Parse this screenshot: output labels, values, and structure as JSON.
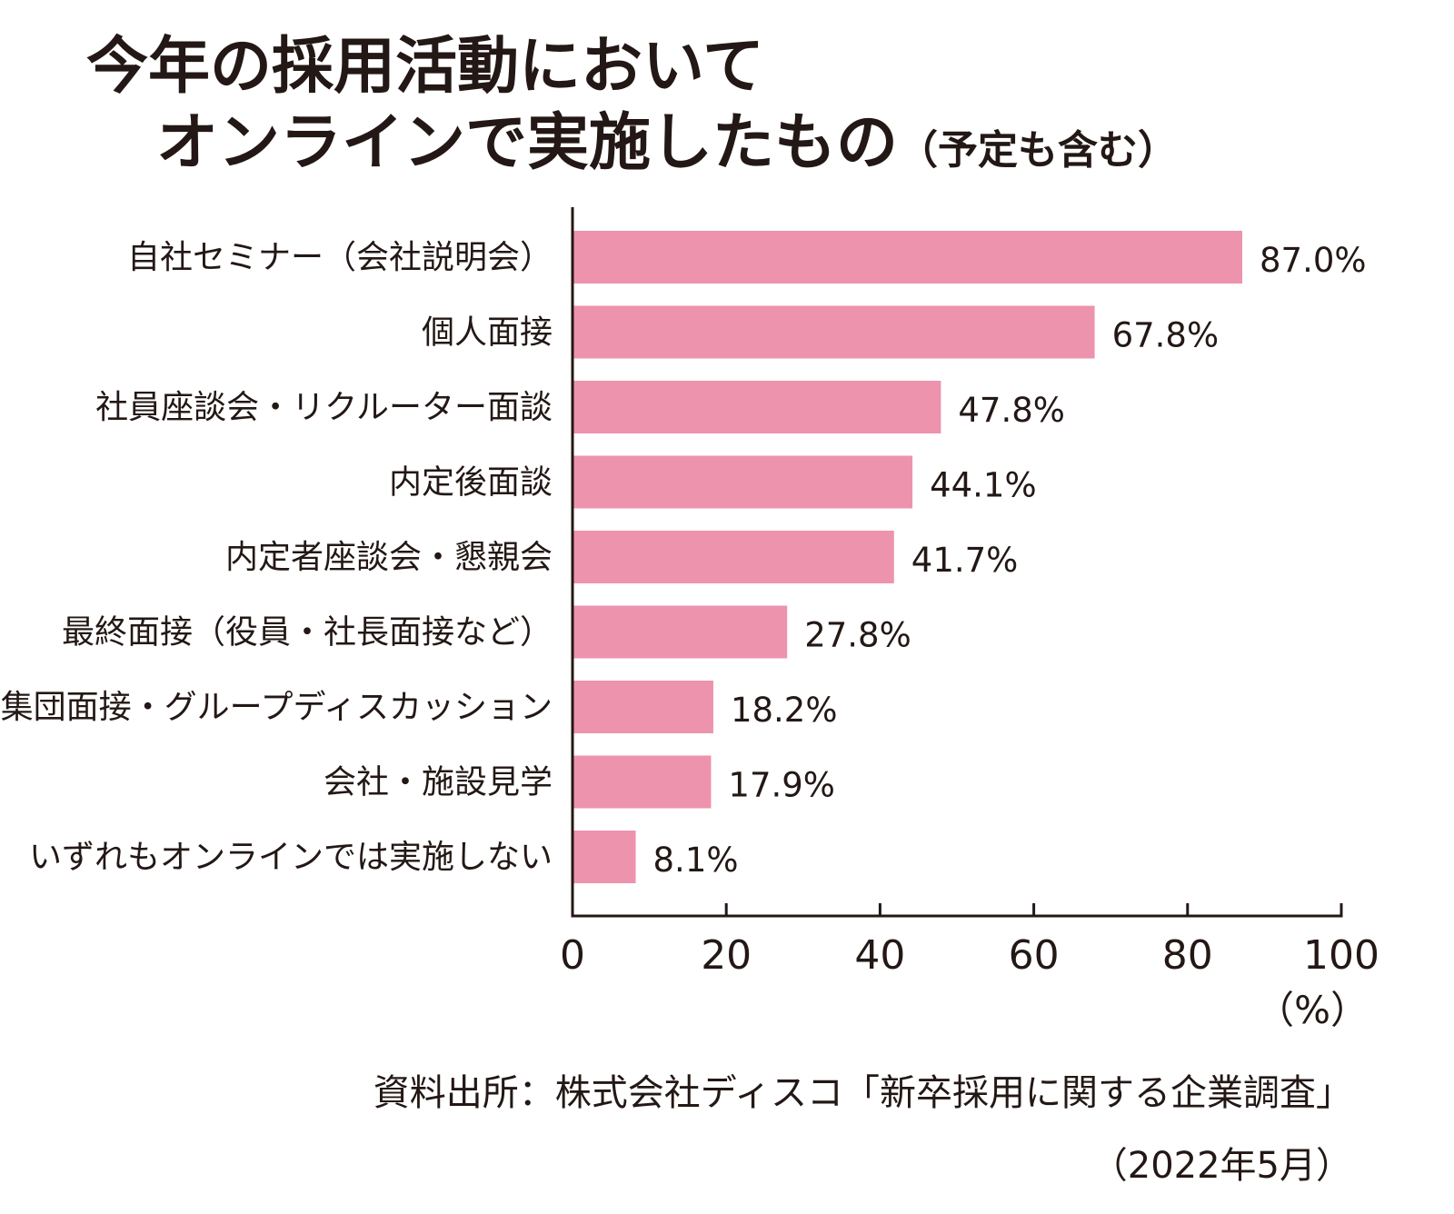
{
  "title": {
    "line1": "今年の採用活動において",
    "line2_main": "オンラインで実施したもの",
    "line2_sub": "（予定も含む）"
  },
  "chart_data": {
    "type": "bar",
    "orientation": "horizontal",
    "categories": [
      "自社セミナー（会社説明会）",
      "個人面接",
      "社員座談会・リクルーター面談",
      "内定後面談",
      "内定者座談会・懇親会",
      "最終面接（役員・社長面接など）",
      "集団面接・グループディスカッション",
      "会社・施設見学",
      "いずれもオンラインでは実施しない"
    ],
    "values": [
      87.0,
      67.8,
      47.8,
      44.1,
      41.7,
      27.8,
      18.2,
      17.9,
      8.1
    ],
    "value_labels": [
      "87.0%",
      "67.8%",
      "47.8%",
      "44.1%",
      "41.7%",
      "27.8%",
      "18.2%",
      "17.9%",
      "8.1%"
    ],
    "xlim": [
      0,
      100
    ],
    "xticks": [
      0,
      20,
      40,
      60,
      80,
      100
    ],
    "xtick_labels": [
      "0",
      "20",
      "40",
      "60",
      "80",
      "100"
    ],
    "xunit": "（%）",
    "bar_color": "#ee93ad",
    "axis_color": "#231815",
    "grid": false
  },
  "source": {
    "line1": "資料出所：株式会社ディスコ「新卒採用に関する企業調査」",
    "line2": "（2022年5月）"
  }
}
